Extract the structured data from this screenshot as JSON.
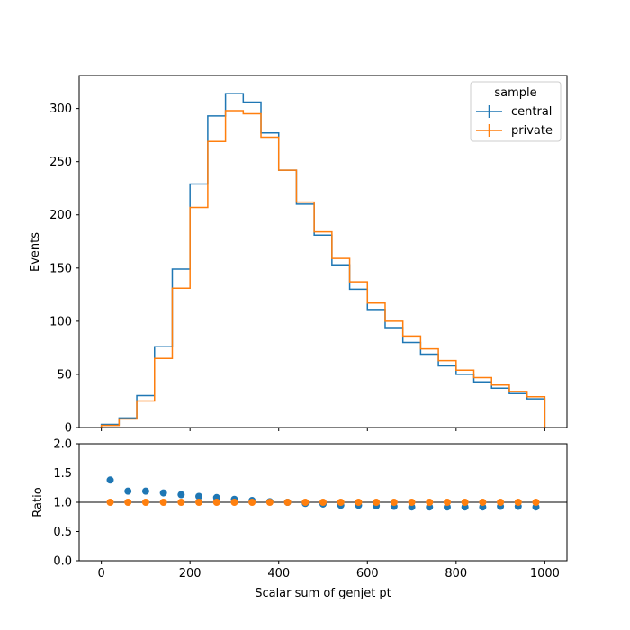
{
  "chart_data": [
    {
      "type": "step",
      "ylabel": "Events",
      "xlim": [
        -50,
        1050
      ],
      "ylim": [
        0,
        331
      ],
      "yticks": [
        0,
        50,
        100,
        150,
        200,
        250,
        300
      ],
      "xticks": [
        0,
        200,
        400,
        600,
        800,
        1000
      ],
      "bin_edges": [
        0,
        40,
        80,
        120,
        160,
        200,
        240,
        280,
        320,
        360,
        400,
        440,
        480,
        520,
        560,
        600,
        640,
        680,
        720,
        760,
        800,
        840,
        880,
        920,
        960,
        1000
      ],
      "legend": {
        "title": "sample",
        "position": "top-right"
      },
      "series": [
        {
          "name": "central",
          "color": "#1f77b4",
          "values": [
            3,
            9,
            30,
            76,
            149,
            229,
            293,
            314,
            306,
            277,
            242,
            210,
            181,
            153,
            130,
            111,
            94,
            80,
            69,
            58,
            50,
            43,
            37,
            32,
            27
          ]
        },
        {
          "name": "private",
          "color": "#ff7f0e",
          "values": [
            2,
            8,
            25,
            65,
            131,
            207,
            269,
            298,
            295,
            273,
            242,
            212,
            184,
            159,
            137,
            117,
            100,
            86,
            74,
            63,
            54,
            47,
            40,
            34,
            29
          ]
        }
      ]
    },
    {
      "type": "scatter",
      "xlabel": "Scalar sum of genjet pt",
      "ylabel": "Ratio",
      "xlim": [
        -50,
        1050
      ],
      "ylim": [
        0,
        2
      ],
      "yticks": [
        "0.0",
        "0.5",
        "1.0",
        "1.5",
        "2.0"
      ],
      "xticks": [
        "0",
        "200",
        "400",
        "600",
        "800",
        "1000"
      ],
      "reference_line": 1.0,
      "x": [
        20,
        60,
        100,
        140,
        180,
        220,
        260,
        300,
        340,
        380,
        420,
        460,
        500,
        540,
        580,
        620,
        660,
        700,
        740,
        780,
        820,
        860,
        900,
        940,
        980
      ],
      "series": [
        {
          "name": "central",
          "color": "#1f77b4",
          "values": [
            1.38,
            1.19,
            1.19,
            1.16,
            1.13,
            1.1,
            1.08,
            1.05,
            1.03,
            1.01,
            1.0,
            0.98,
            0.97,
            0.95,
            0.95,
            0.94,
            0.93,
            0.92,
            0.92,
            0.92,
            0.92,
            0.92,
            0.93,
            0.93,
            0.92
          ]
        },
        {
          "name": "private",
          "color": "#ff7f0e",
          "values": [
            1,
            1,
            1,
            1,
            1,
            1,
            1,
            1,
            1,
            1,
            1,
            1,
            1,
            1,
            1,
            1,
            1,
            1,
            1,
            1,
            1,
            1,
            1,
            1,
            1
          ]
        }
      ]
    }
  ]
}
